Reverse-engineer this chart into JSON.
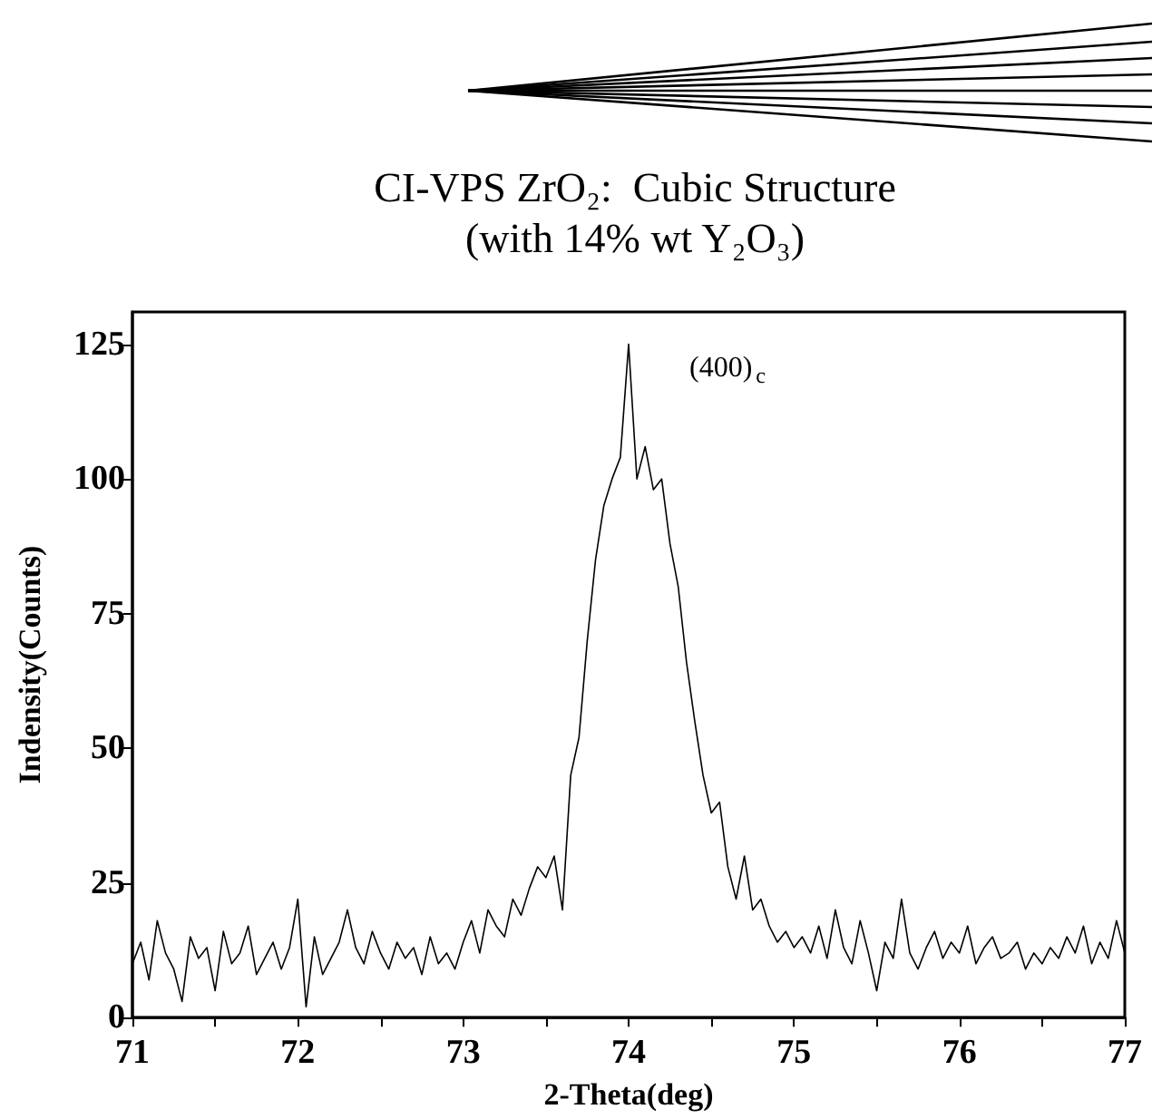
{
  "chart_data": {
    "type": "line",
    "title": "CI-VPS ZrO₂:  Cubic Structure",
    "subtitle": "(with 14% wt Y₂O₃)",
    "xlabel": "2-Theta(deg)",
    "ylabel": "Indensity(Counts)",
    "annotations": [
      "(400)$_{c}$"
    ],
    "x": [
      71,
      71.05,
      71.1,
      71.15,
      71.2,
      71.25,
      71.3,
      71.35,
      71.4,
      71.45,
      71.5,
      71.55,
      71.6,
      71.65,
      71.7,
      71.75,
      71.8,
      71.85,
      71.9,
      71.95,
      72,
      72.05,
      72.1,
      72.15,
      72.2,
      72.25,
      72.3,
      72.35,
      72.4,
      72.45,
      72.5,
      72.55,
      72.6,
      72.65,
      72.7,
      72.75,
      72.8,
      72.85,
      72.9,
      72.95,
      73,
      73.05,
      73.1,
      73.15,
      73.2,
      73.25,
      73.3,
      73.35,
      73.4,
      73.45,
      73.5,
      73.55,
      73.6,
      73.65,
      73.7,
      73.75,
      73.8,
      73.85,
      73.9,
      73.95,
      74,
      74.05,
      74.1,
      74.15,
      74.2,
      74.25,
      74.3,
      74.35,
      74.4,
      74.45,
      74.5,
      74.55,
      74.6,
      74.65,
      74.7,
      74.75,
      74.8,
      74.85,
      74.9,
      74.95,
      75,
      75.05,
      75.1,
      75.15,
      75.2,
      75.25,
      75.3,
      75.35,
      75.4,
      75.45,
      75.5,
      75.55,
      75.6,
      75.65,
      75.7,
      75.75,
      75.8,
      75.85,
      75.9,
      75.95,
      76,
      76.05,
      76.1,
      76.15,
      76.2,
      76.25,
      76.3,
      76.35,
      76.4,
      76.45,
      76.5,
      76.55,
      76.6,
      76.65,
      76.7,
      76.75,
      76.8,
      76.85,
      76.9,
      76.95,
      77
    ],
    "series": [
      {
        "color": "#000000",
        "values": [
          10,
          14,
          7,
          18,
          12,
          9,
          3,
          15,
          11,
          13,
          5,
          16,
          10,
          12,
          17,
          8,
          11,
          14,
          9,
          13,
          22,
          2,
          15,
          8,
          11,
          14,
          20,
          13,
          10,
          16,
          12,
          9,
          14,
          11,
          13,
          8,
          15,
          10,
          12,
          9,
          14,
          18,
          12,
          20,
          17,
          15,
          22,
          19,
          24,
          28,
          26,
          30,
          20,
          45,
          52,
          70,
          85,
          95,
          100,
          104,
          125,
          100,
          106,
          98,
          100,
          88,
          80,
          66,
          55,
          45,
          38,
          40,
          28,
          22,
          30,
          20,
          22,
          17,
          14,
          16,
          13,
          15,
          12,
          17,
          11,
          20,
          13,
          10,
          18,
          12,
          5,
          14,
          11,
          22,
          12,
          9,
          13,
          16,
          11,
          14,
          12,
          17,
          10,
          13,
          15,
          11,
          12,
          14,
          9,
          12,
          10,
          13,
          11,
          15,
          12,
          17,
          10,
          14,
          11,
          18,
          12
        ]
      }
    ],
    "xlim": [
      71,
      77
    ],
    "ylim": [
      0,
      131
    ],
    "xticks": [
      71,
      {
        "value": 71.5,
        "label": null
      },
      72,
      {
        "value": 72.5,
        "label": null
      },
      73,
      {
        "value": 73.5,
        "label": null
      },
      74,
      {
        "value": 74.5,
        "label": null
      },
      75,
      {
        "value": 75.5,
        "label": null
      },
      76,
      {
        "value": 76.5,
        "label": null
      },
      77
    ],
    "yticks": [
      0,
      25,
      50,
      75,
      100,
      125
    ],
    "grid": false,
    "marker": "none",
    "line_style": "solid"
  }
}
